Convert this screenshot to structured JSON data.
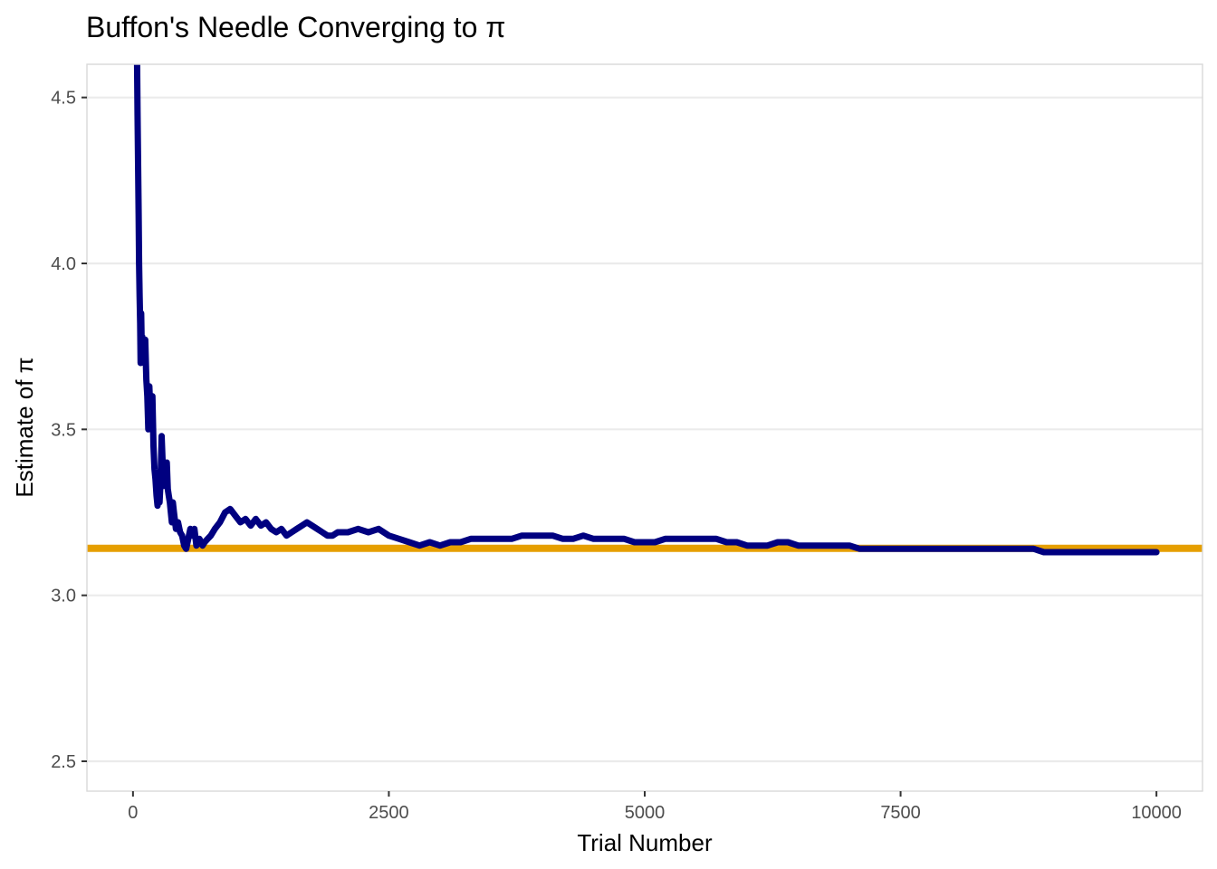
{
  "chart_data": {
    "type": "line",
    "title": "Buffon's Needle Converging to π",
    "xlabel": "Trial Number",
    "ylabel": "Estimate of π",
    "xlim": [
      -450,
      10450
    ],
    "ylim": [
      2.41,
      4.6
    ],
    "x_ticks": [
      0,
      2500,
      5000,
      7500,
      10000
    ],
    "x_tick_labels": [
      "0",
      "2500",
      "5000",
      "7500",
      "10000"
    ],
    "y_ticks": [
      2.5,
      3.0,
      3.5,
      4.0,
      4.5
    ],
    "y_tick_labels": [
      "2.5",
      "3.0",
      "3.5",
      "4.0",
      "4.5"
    ],
    "grid": true,
    "reference_line": {
      "y": 3.14159,
      "color": "#E69F00"
    },
    "series": [
      {
        "color": "#000080",
        "x": [
          40,
          45,
          50,
          55,
          60,
          65,
          70,
          75,
          80,
          85,
          90,
          100,
          110,
          120,
          130,
          140,
          150,
          160,
          170,
          180,
          190,
          200,
          210,
          220,
          230,
          240,
          250,
          260,
          270,
          280,
          290,
          300,
          310,
          320,
          330,
          340,
          350,
          360,
          370,
          380,
          390,
          400,
          420,
          440,
          460,
          480,
          500,
          520,
          540,
          560,
          580,
          600,
          620,
          650,
          680,
          700,
          730,
          760,
          800,
          850,
          900,
          950,
          1000,
          1050,
          1100,
          1150,
          1200,
          1250,
          1300,
          1350,
          1400,
          1450,
          1500,
          1550,
          1600,
          1650,
          1700,
          1750,
          1800,
          1850,
          1900,
          1950,
          2000,
          2100,
          2200,
          2300,
          2400,
          2500,
          2600,
          2700,
          2800,
          2900,
          3000,
          3100,
          3200,
          3300,
          3400,
          3500,
          3600,
          3700,
          3800,
          3900,
          4000,
          4100,
          4200,
          4300,
          4400,
          4500,
          4600,
          4700,
          4800,
          4900,
          5000,
          5100,
          5200,
          5300,
          5400,
          5500,
          5600,
          5700,
          5800,
          5900,
          6000,
          6100,
          6200,
          6300,
          6400,
          6500,
          6600,
          6700,
          6800,
          6900,
          7000,
          7100,
          7200,
          7300,
          7400,
          7500,
          7600,
          7700,
          7800,
          7900,
          8000,
          8100,
          8200,
          8300,
          8400,
          8500,
          8600,
          8700,
          8800,
          8900,
          9000,
          9100,
          9200,
          9300,
          9400,
          9500,
          9600,
          9700,
          9800,
          9900,
          10000
        ],
        "y": [
          4.6,
          4.45,
          4.3,
          4.15,
          4.0,
          3.9,
          3.82,
          3.7,
          3.85,
          3.75,
          3.78,
          3.72,
          3.7,
          3.77,
          3.65,
          3.6,
          3.5,
          3.63,
          3.55,
          3.58,
          3.6,
          3.45,
          3.38,
          3.35,
          3.3,
          3.27,
          3.33,
          3.28,
          3.35,
          3.48,
          3.4,
          3.33,
          3.38,
          3.35,
          3.4,
          3.32,
          3.3,
          3.28,
          3.25,
          3.22,
          3.28,
          3.25,
          3.2,
          3.22,
          3.19,
          3.18,
          3.15,
          3.14,
          3.17,
          3.2,
          3.18,
          3.2,
          3.15,
          3.17,
          3.15,
          3.16,
          3.17,
          3.18,
          3.2,
          3.22,
          3.25,
          3.26,
          3.24,
          3.22,
          3.23,
          3.21,
          3.23,
          3.21,
          3.22,
          3.2,
          3.19,
          3.2,
          3.18,
          3.19,
          3.2,
          3.21,
          3.22,
          3.21,
          3.2,
          3.19,
          3.18,
          3.18,
          3.19,
          3.19,
          3.2,
          3.19,
          3.2,
          3.18,
          3.17,
          3.16,
          3.15,
          3.16,
          3.15,
          3.16,
          3.16,
          3.17,
          3.17,
          3.17,
          3.17,
          3.17,
          3.18,
          3.18,
          3.18,
          3.18,
          3.17,
          3.17,
          3.18,
          3.17,
          3.17,
          3.17,
          3.17,
          3.16,
          3.16,
          3.16,
          3.17,
          3.17,
          3.17,
          3.17,
          3.17,
          3.17,
          3.16,
          3.16,
          3.15,
          3.15,
          3.15,
          3.16,
          3.16,
          3.15,
          3.15,
          3.15,
          3.15,
          3.15,
          3.15,
          3.14,
          3.14,
          3.14,
          3.14,
          3.14,
          3.14,
          3.14,
          3.14,
          3.14,
          3.14,
          3.14,
          3.14,
          3.14,
          3.14,
          3.14,
          3.14,
          3.14,
          3.14,
          3.13,
          3.13,
          3.13,
          3.13,
          3.13,
          3.13,
          3.13,
          3.13,
          3.13,
          3.13,
          3.13,
          3.13
        ]
      }
    ]
  }
}
